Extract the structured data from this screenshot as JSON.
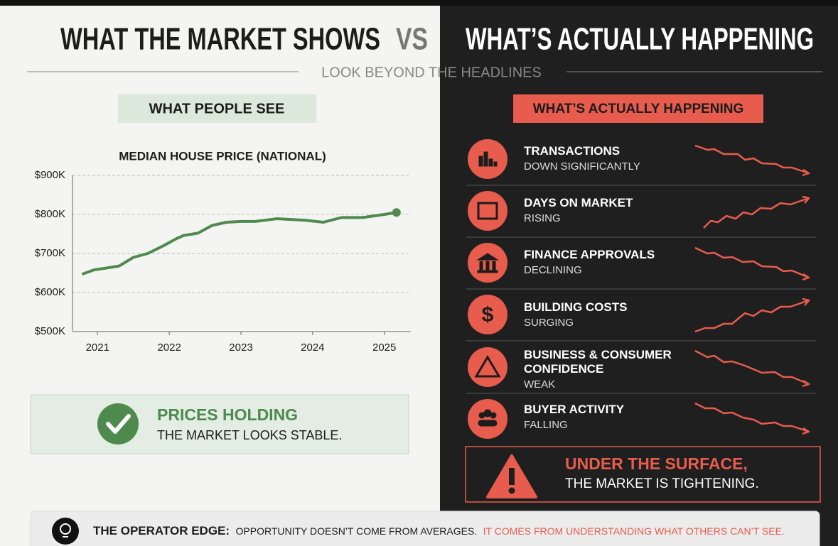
{
  "header": {
    "title_left": "WHAT THE MARKET SHOWS",
    "vs": "VS",
    "title_right": "WHAT’S ACTUALLY HAPPENING",
    "subtitle": "LOOK BEYOND THE HEADLINES"
  },
  "left": {
    "badge": "WHAT PEOPLE SEE",
    "callout": {
      "title": "PRICES HOLDING",
      "text": "THE MARKET LOOKS STABLE."
    }
  },
  "chart_data": {
    "type": "line",
    "title": "MEDIAN HOUSE PRICE (NATIONAL)",
    "color": "#4e8a4e",
    "grid": true,
    "x": [
      2020.8,
      2020.95,
      2021.1,
      2021.3,
      2021.5,
      2021.7,
      2021.9,
      2022.1,
      2022.2,
      2022.4,
      2022.6,
      2022.8,
      2023.0,
      2023.2,
      2023.5,
      2023.7,
      2023.9,
      2024.15,
      2024.4,
      2024.7,
      2025.0,
      2025.17
    ],
    "values": [
      648000,
      658000,
      662000,
      668000,
      690000,
      700000,
      718000,
      738000,
      746000,
      752000,
      772000,
      780000,
      782000,
      782000,
      789000,
      787000,
      785000,
      780000,
      792000,
      792000,
      800000,
      805000
    ],
    "xlim": [
      2020.65,
      2025.37
    ],
    "xticks": [
      2021,
      2022,
      2023,
      2024,
      2025
    ],
    "ylim": [
      500000,
      900000
    ],
    "yticks": [
      {
        "value": 500000,
        "label": "$500K"
      },
      {
        "value": 600000,
        "label": "$600K"
      },
      {
        "value": 700000,
        "label": "$700K"
      },
      {
        "value": 800000,
        "label": "$800K"
      },
      {
        "value": 900000,
        "label": "$900K"
      }
    ]
  },
  "right": {
    "badge": "WHAT’S ACTUALLY HAPPENING",
    "items": [
      {
        "title": "TRANSACTIONS",
        "status": "DOWN SIGNIFICANTLY"
      },
      {
        "title": "DAYS ON MARKET",
        "status": "RISING"
      },
      {
        "title": "FINANCE APPROVALS",
        "status": "DECLINING"
      },
      {
        "title": "BUILDING COSTS",
        "status": "SURGING"
      },
      {
        "title": "BUSINESS & CONSUMER CONFIDENCE",
        "status": "WEAK"
      },
      {
        "title": "BUYER ACTIVITY",
        "status": "FALLING"
      }
    ],
    "warning": {
      "title": "UNDER THE SURFACE,",
      "text": "THE MARKET IS TIGHTENING."
    }
  },
  "footer": {
    "label": "THE OPERATOR EDGE:",
    "text": "OPPORTUNITY DOESN’T COME FROM AVERAGES.",
    "highlight": "IT COMES FROM UNDERSTANDING WHAT OTHERS CAN’T SEE."
  }
}
